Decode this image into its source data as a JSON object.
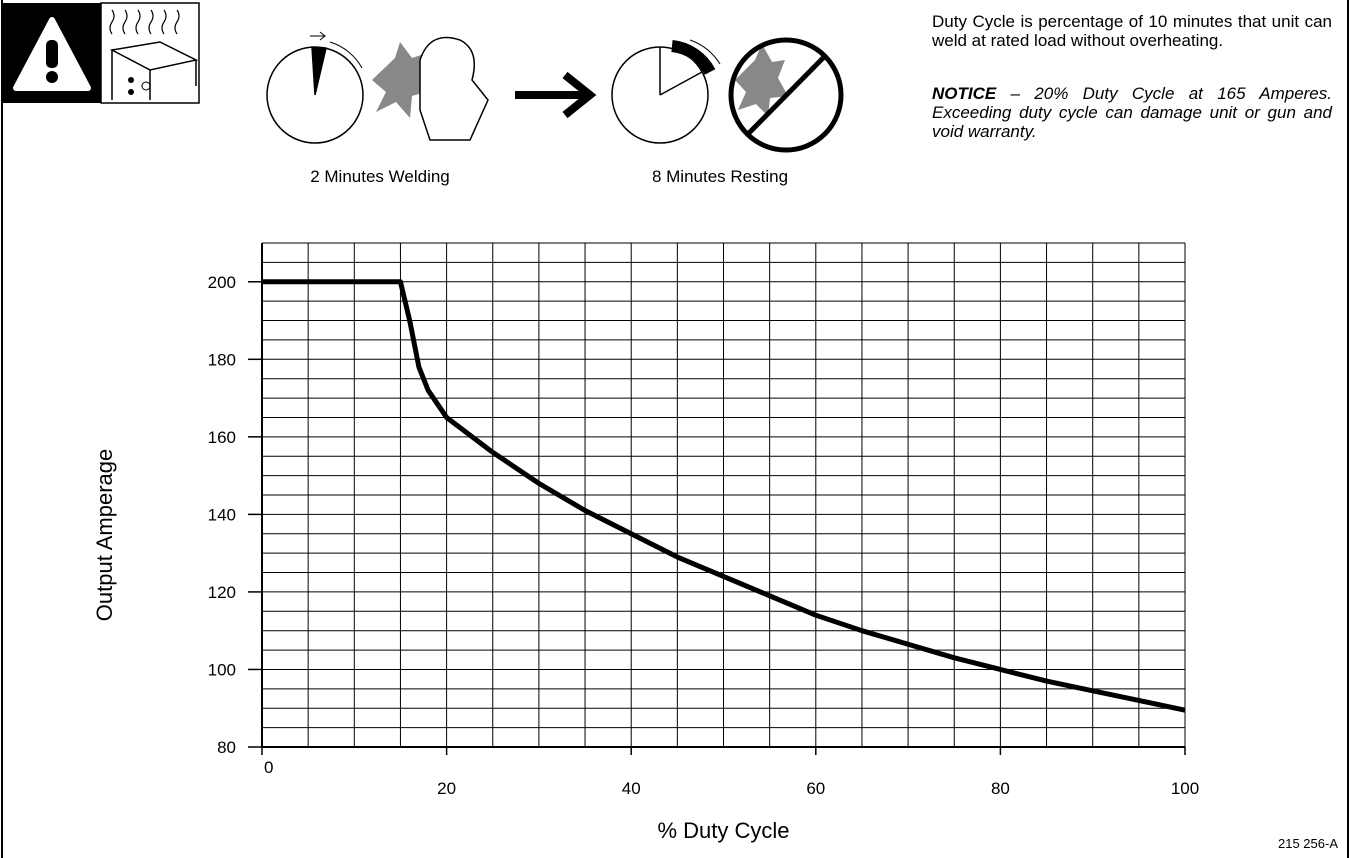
{
  "header": {
    "caption_welding": "2 Minutes Welding",
    "caption_resting": "8 Minutes Resting",
    "description": "Duty Cycle is percentage of 10 minutes that unit can weld at rated load without overheating.",
    "notice_label": "NOTICE",
    "notice_text": "– 20% Duty Cycle at 165 Amperes. Exceeding duty cycle can damage unit or gun and void warranty."
  },
  "figure_id": "215 256-A",
  "chart_data": {
    "type": "line",
    "xlabel": "% Duty Cycle",
    "ylabel": "Output Amperage",
    "x": [
      0,
      15,
      16,
      17,
      18,
      20,
      25,
      30,
      35,
      40,
      45,
      50,
      55,
      60,
      65,
      70,
      75,
      80,
      85,
      90,
      95,
      100
    ],
    "values": [
      200,
      200,
      190,
      178,
      172,
      165,
      156,
      148,
      141,
      135,
      129,
      124,
      119,
      114,
      110,
      106.5,
      103,
      100,
      97,
      94.5,
      92,
      89.5
    ],
    "color": "#000000",
    "xlim": [
      0,
      100
    ],
    "ylim": [
      80,
      210
    ],
    "xticks": [
      0,
      20,
      40,
      60,
      80,
      100
    ],
    "yticks": [
      80,
      100,
      120,
      140,
      160,
      180,
      200
    ],
    "grid": true,
    "x_grid_step": 5,
    "y_grid_step": 5
  }
}
